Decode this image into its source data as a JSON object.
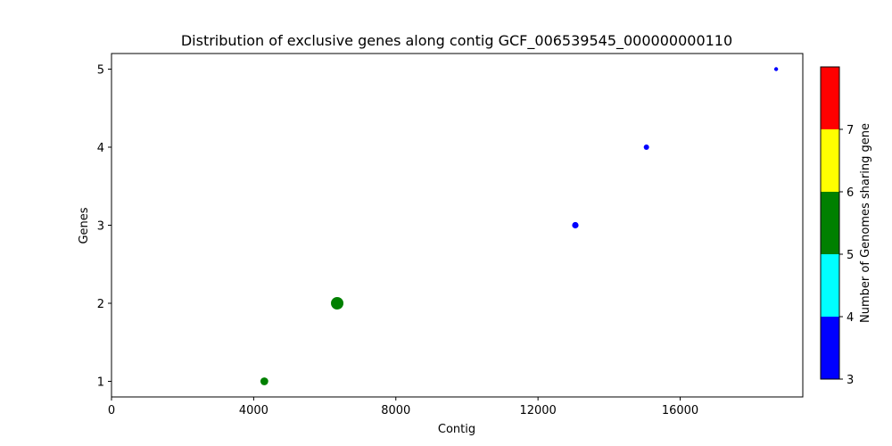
{
  "chart_data": {
    "type": "scatter",
    "title": "Distribution of exclusive genes along contig GCF_006539545_000000000110",
    "xlabel": "Contig",
    "ylabel": "Genes",
    "xlim": [
      0,
      19450
    ],
    "ylim": [
      0.8,
      5.2
    ],
    "xticks": [
      0,
      4000,
      8000,
      12000,
      16000
    ],
    "yticks": [
      1,
      2,
      3,
      4,
      5
    ],
    "grid": false,
    "points": [
      {
        "x": 4300,
        "y": 1,
        "genomes": 5,
        "size": "medium",
        "color": "#008000"
      },
      {
        "x": 6350,
        "y": 2,
        "genomes": 5,
        "size": "large",
        "color": "#008000"
      },
      {
        "x": 13050,
        "y": 3,
        "genomes": 3,
        "size": "medium-small",
        "color": "#0000ff"
      },
      {
        "x": 15050,
        "y": 4,
        "genomes": 3,
        "size": "small",
        "color": "#0000ff"
      },
      {
        "x": 18700,
        "y": 5,
        "genomes": 3,
        "size": "tiny",
        "color": "#0000ff"
      }
    ],
    "colorbar": {
      "label": "Number of Genomes sharing gene",
      "range": [
        3,
        8
      ],
      "ticks": [
        3,
        4,
        5,
        6,
        7
      ],
      "segments": [
        {
          "from": 3,
          "to": 4,
          "color": "#0000ff"
        },
        {
          "from": 4,
          "to": 5,
          "color": "#00ffff"
        },
        {
          "from": 5,
          "to": 6,
          "color": "#008000"
        },
        {
          "from": 6,
          "to": 7,
          "color": "#ffff00"
        },
        {
          "from": 7,
          "to": 8,
          "color": "#ff0000"
        }
      ]
    }
  }
}
